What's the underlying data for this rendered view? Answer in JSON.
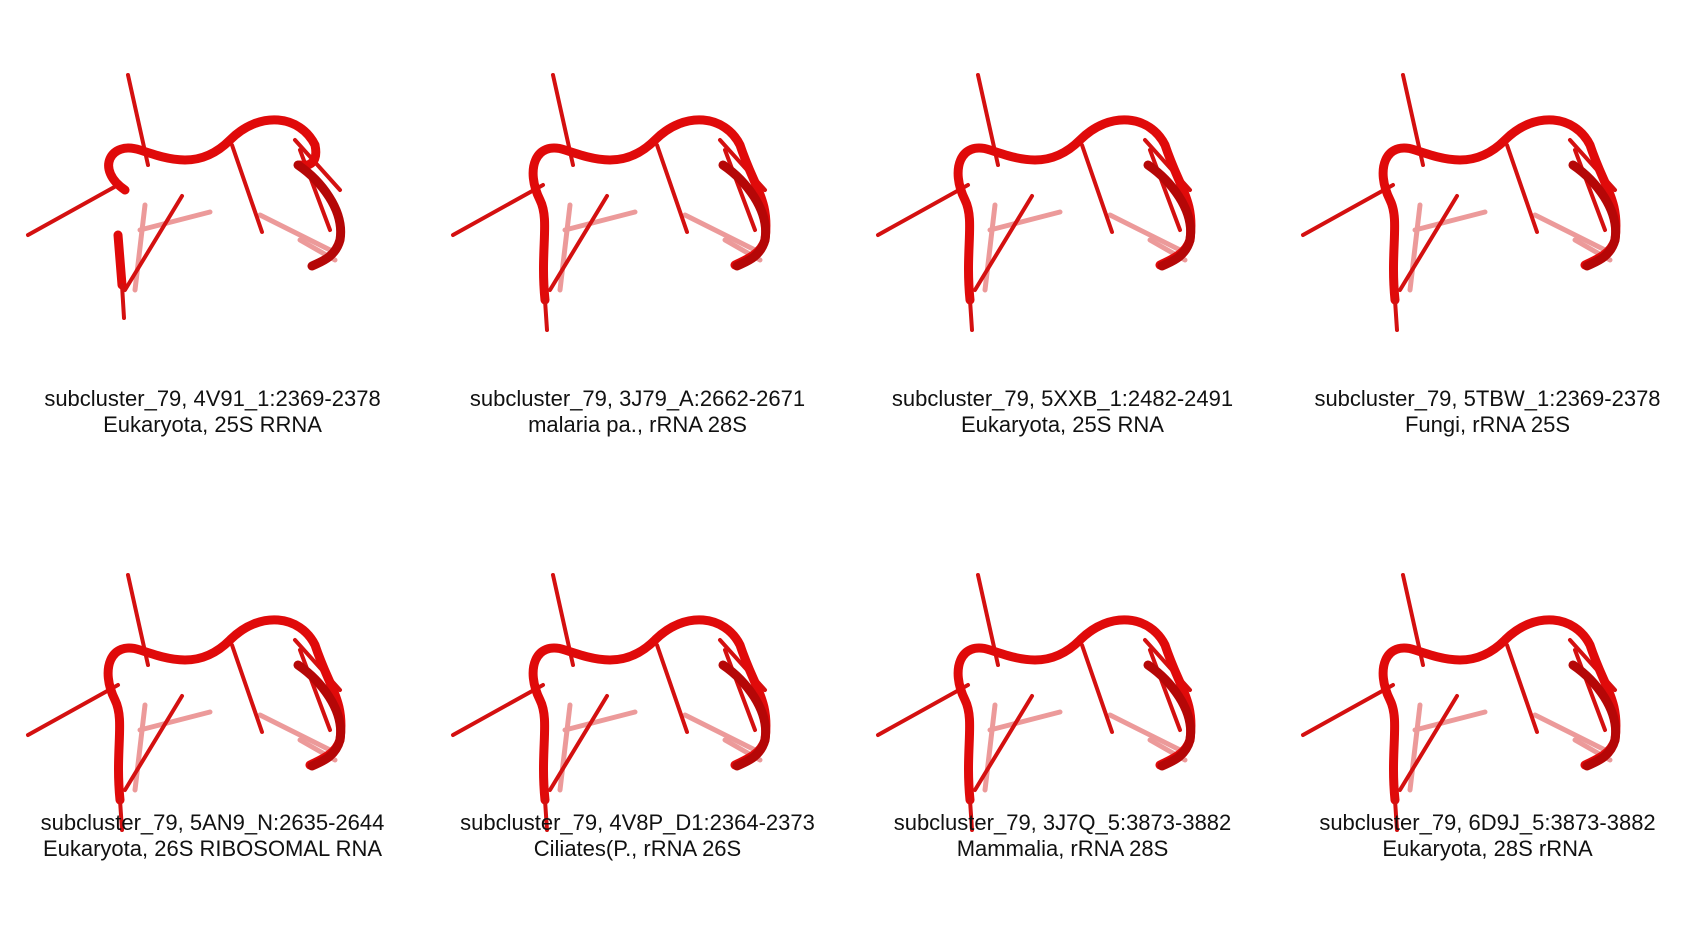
{
  "colors": {
    "backbone": "#e00a0a",
    "backbone_dark": "#b50707",
    "base": "#d41010",
    "faded": "#ec9a9a"
  },
  "panels": [
    {
      "line1": "subcluster_79, 4V91_1:2369-2378",
      "line2": "Eukaryota, 25S RRNA",
      "icon": "rna-backbone-structure"
    },
    {
      "line1": "subcluster_79, 3J79_A:2662-2671",
      "line2": "malaria pa., rRNA 28S",
      "icon": "rna-backbone-structure"
    },
    {
      "line1": "subcluster_79, 5XXB_1:2482-2491",
      "line2": "Eukaryota, 25S RNA",
      "icon": "rna-backbone-structure"
    },
    {
      "line1": "subcluster_79, 5TBW_1:2369-2378",
      "line2": "Fungi, rRNA 25S",
      "icon": "rna-backbone-structure"
    },
    {
      "line1": "subcluster_79, 5AN9_N:2635-2644",
      "line2": "Eukaryota, 26S RIBOSOMAL RNA",
      "icon": "rna-backbone-structure"
    },
    {
      "line1": "subcluster_79, 4V8P_D1:2364-2373",
      "line2": "Ciliates(P., rRNA 26S",
      "icon": "rna-backbone-structure"
    },
    {
      "line1": "subcluster_79, 3J7Q_5:3873-3882",
      "line2": "Mammalia, rRNA 28S",
      "icon": "rna-backbone-structure"
    },
    {
      "line1": "subcluster_79, 6D9J_5:3873-3882",
      "line2": "Eukaryota, 28S rRNA",
      "icon": "rna-backbone-structure"
    }
  ]
}
